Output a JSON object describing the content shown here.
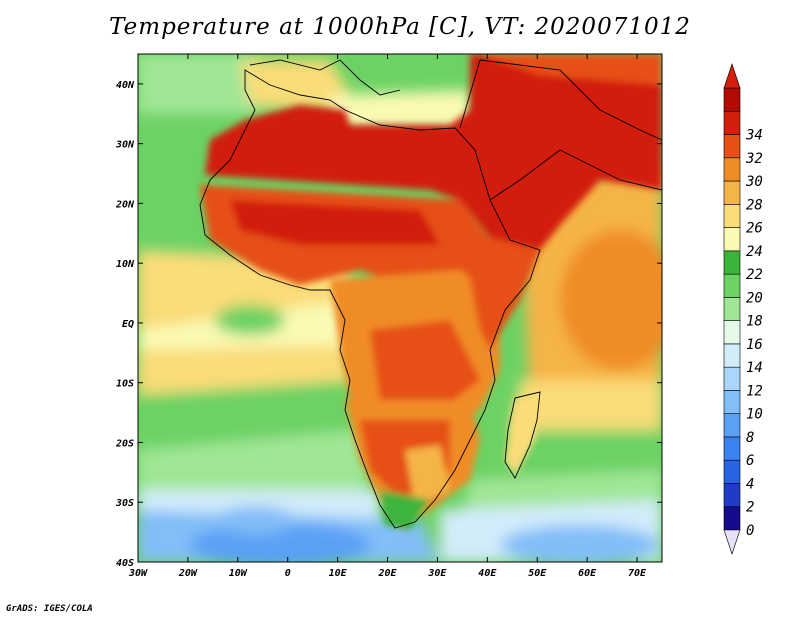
{
  "title": "Temperature at 1000hPa [C], VT: 2020071012",
  "credit": "GrADS: IGES/COLA",
  "map": {
    "lon_range": [
      -30,
      75
    ],
    "lat_range": [
      -40,
      45
    ],
    "lon_ticks": [
      {
        "value": -30,
        "label": "30W"
      },
      {
        "value": -20,
        "label": "20W"
      },
      {
        "value": -10,
        "label": "10W"
      },
      {
        "value": 0,
        "label": "0"
      },
      {
        "value": 10,
        "label": "10E"
      },
      {
        "value": 20,
        "label": "20E"
      },
      {
        "value": 30,
        "label": "30E"
      },
      {
        "value": 40,
        "label": "40E"
      },
      {
        "value": 50,
        "label": "50E"
      },
      {
        "value": 60,
        "label": "60E"
      },
      {
        "value": 70,
        "label": "70E"
      }
    ],
    "lat_ticks": [
      {
        "value": 40,
        "label": "40N"
      },
      {
        "value": 30,
        "label": "30N"
      },
      {
        "value": 20,
        "label": "20N"
      },
      {
        "value": 10,
        "label": "10N"
      },
      {
        "value": 0,
        "label": "EQ"
      },
      {
        "value": -10,
        "label": "10S"
      },
      {
        "value": -20,
        "label": "20S"
      },
      {
        "value": -30,
        "label": "30S"
      },
      {
        "value": -40,
        "label": "40S"
      }
    ]
  },
  "colorbar": {
    "levels": [
      0,
      2,
      4,
      6,
      8,
      10,
      12,
      14,
      16,
      18,
      20,
      22,
      24,
      26,
      28,
      30,
      32,
      34
    ],
    "colors": [
      "#140c8c",
      "#1e3cc8",
      "#2a64e6",
      "#3c82f0",
      "#5aa0f5",
      "#82bef8",
      "#aad6fa",
      "#d2ecfa",
      "#e6f8e6",
      "#a0e696",
      "#6cd264",
      "#3cb43c",
      "#fafab4",
      "#fadc78",
      "#f5b446",
      "#f08c28",
      "#e65014",
      "#d21e0a",
      "#b40a05"
    ],
    "under_color": "#e6e0fa",
    "over_color": "#d21e0a"
  }
}
